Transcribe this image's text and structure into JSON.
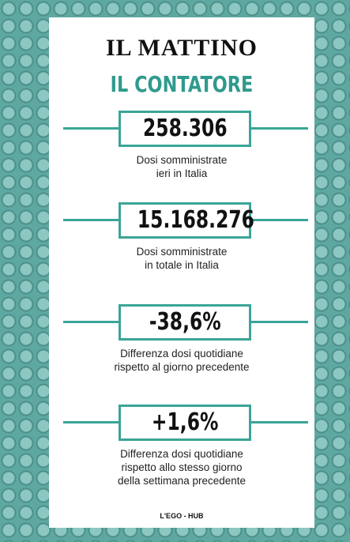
{
  "header": {
    "logo": "IL MATTINO",
    "title": "IL CONTATORE"
  },
  "items": [
    {
      "value": "258.306",
      "label": [
        "Dosi somministrate",
        "ieri in Italia"
      ]
    },
    {
      "value": "15.168.276",
      "label": [
        "Dosi somministrate",
        "in totale in Italia"
      ]
    },
    {
      "value": "-38,6%",
      "label": [
        "Differenza dosi quotidiane",
        "rispetto al giorno precedente"
      ]
    },
    {
      "value": "+1,6%",
      "label": [
        "Differenza dosi quotidiane",
        "rispetto allo stesso giorno",
        "della settimana precedente"
      ]
    }
  ],
  "footer": "L'EGO - HUB"
}
